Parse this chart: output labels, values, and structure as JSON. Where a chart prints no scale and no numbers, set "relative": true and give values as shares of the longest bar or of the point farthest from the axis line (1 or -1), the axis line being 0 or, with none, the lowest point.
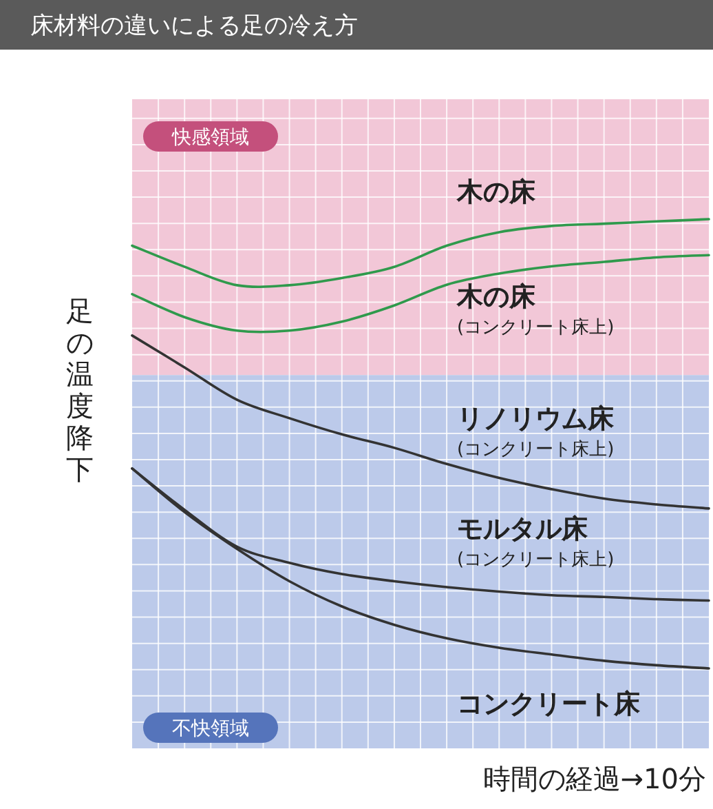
{
  "chart_data": {
    "type": "line",
    "title": "床材料の違いによる足の冷え方",
    "ylabel": "足の温度降下",
    "xlabel": "時間の経過→10分",
    "relative": true,
    "grid": true,
    "legend": false,
    "marker": "none",
    "line_style": "solid",
    "categories": [
      null,
      null,
      null,
      null,
      null,
      null,
      null,
      null,
      null,
      null,
      null,
      null
    ],
    "bands": [
      {
        "axis": "y",
        "from": 0.653,
        "to": 1.267,
        "label": "快感領域",
        "color": "#f2c7d7"
      },
      {
        "axis": "y",
        "from": -0.178,
        "to": 0.653,
        "label": "不快領域",
        "color": "#bccaea"
      }
    ],
    "series": [
      {
        "name": "木の床",
        "color": "#2f9a4c",
        "values": [
          0.941,
          0.894,
          0.853,
          0.853,
          0.869,
          0.894,
          0.941,
          0.971,
          0.985,
          0.99,
          0.995,
          1
        ]
      },
      {
        "name": "木の床$_{(コンクリート床上)}$",
        "color": "#2f9a4c",
        "values": [
          0.833,
          0.782,
          0.752,
          0.752,
          0.772,
          0.808,
          0.854,
          0.879,
          0.895,
          0.905,
          0.915,
          0.92
        ]
      },
      {
        "name": "リノリウム床$_{(コンクリート床上)}$",
        "color": "#333333",
        "values": [
          0.741,
          0.67,
          0.598,
          0.557,
          0.521,
          0.491,
          0.455,
          0.424,
          0.399,
          0.378,
          0.365,
          0.356
        ]
      },
      {
        "name": "モルタル床$_{(コンクリート床上)}$",
        "color": "#333333",
        "values": [
          0.445,
          0.353,
          0.271,
          0.235,
          0.21,
          0.194,
          0.181,
          0.171,
          0.163,
          0.159,
          0.154,
          0.151
        ]
      },
      {
        "name": "コンクリート床",
        "color": "#333333",
        "values": [
          0.445,
          0.348,
          0.266,
          0.194,
          0.138,
          0.097,
          0.067,
          0.046,
          0.031,
          0.017,
          0.007,
          0
        ]
      }
    ]
  }
}
